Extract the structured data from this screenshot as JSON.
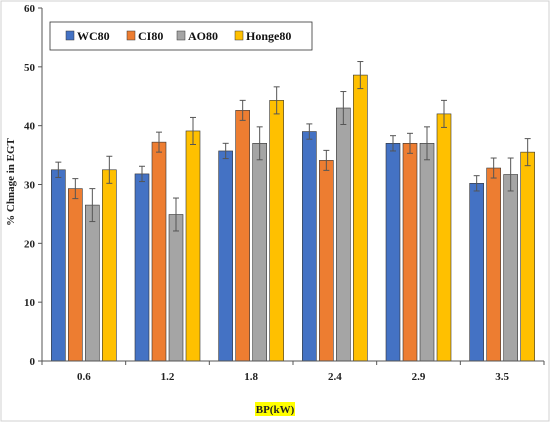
{
  "chart_data": {
    "type": "bar",
    "title": "",
    "xlabel": "BP(kW)",
    "ylabel": "% Chnage in EGT",
    "ylim": [
      0,
      60
    ],
    "yticks": [
      0,
      10,
      20,
      30,
      40,
      50,
      60
    ],
    "grid": false,
    "legend_position": "top-left",
    "categories": [
      "0.6",
      "1.2",
      "1.8",
      "2.4",
      "2.9",
      "3.5"
    ],
    "series": [
      {
        "name": "WC80",
        "color": "#4472c4",
        "values": [
          32.5,
          31.8,
          35.7,
          39.0,
          37.0,
          30.2
        ],
        "errors": [
          1.3,
          1.3,
          1.3,
          1.3,
          1.3,
          1.3
        ]
      },
      {
        "name": "CI80",
        "color": "#ed7d31",
        "values": [
          29.3,
          37.2,
          42.6,
          34.1,
          37.0,
          32.8
        ],
        "errors": [
          1.7,
          1.7,
          1.7,
          1.7,
          1.7,
          1.7
        ]
      },
      {
        "name": "AO80",
        "color": "#a5a5a5",
        "values": [
          26.5,
          24.9,
          37.0,
          43.0,
          37.0,
          31.7
        ],
        "errors": [
          2.8,
          2.8,
          2.8,
          2.8,
          2.8,
          2.8
        ]
      },
      {
        "name": "Honge80",
        "color": "#ffc000",
        "values": [
          32.5,
          39.1,
          44.3,
          48.6,
          42.0,
          35.5
        ],
        "errors": [
          2.3,
          2.3,
          2.3,
          2.3,
          2.3,
          2.3
        ]
      }
    ]
  }
}
